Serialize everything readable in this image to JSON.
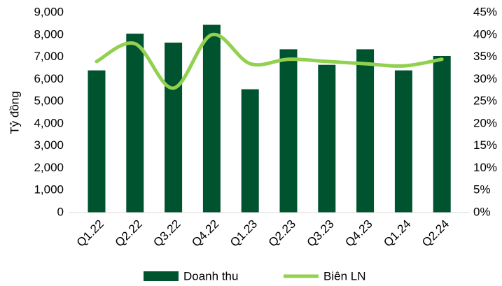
{
  "chart_data": {
    "type": "bar",
    "ylabel": "Tỷ đồng",
    "categories": [
      "Q1.22",
      "Q2.22",
      "Q3.22",
      "Q4.22",
      "Q1.23",
      "Q2.23",
      "Q3.23",
      "Q4.23",
      "Q1.24",
      "Q2.24"
    ],
    "series": [
      {
        "name": "Doanh thu",
        "type": "bar",
        "color": "#00532f",
        "values": [
          6400,
          8050,
          7650,
          8450,
          5550,
          7350,
          6650,
          7350,
          6400,
          7050
        ]
      },
      {
        "name": "Biên LN",
        "type": "line",
        "axis": "y2",
        "color": "#92d050",
        "values": [
          34,
          38,
          28,
          40,
          33.5,
          34.5,
          34,
          33.5,
          33,
          34.5
        ]
      }
    ],
    "ylim": [
      0,
      9000
    ],
    "yticks": [
      0,
      {
        "value": 1000,
        "label": "1,000"
      },
      {
        "value": 2000,
        "label": "2,000"
      },
      {
        "value": 3000,
        "label": "3,000"
      },
      {
        "value": 4000,
        "label": "4,000"
      },
      {
        "value": 5000,
        "label": "5,000"
      },
      {
        "value": 6000,
        "label": "6,000"
      },
      {
        "value": 7000,
        "label": "7,000"
      },
      {
        "value": 8000,
        "label": "8,000"
      },
      {
        "value": 9000,
        "label": "9,000"
      }
    ],
    "y2lim": [
      0,
      45
    ],
    "y2ticks": [
      {
        "value": 0,
        "label": "0%"
      },
      {
        "value": 5,
        "label": "5%"
      },
      {
        "value": 10,
        "label": "10%"
      },
      {
        "value": 15,
        "label": "15%"
      },
      {
        "value": 20,
        "label": "20%"
      },
      {
        "value": 25,
        "label": "25%"
      },
      {
        "value": 30,
        "label": "30%"
      },
      {
        "value": 35,
        "label": "35%"
      },
      {
        "value": 40,
        "label": "40%"
      },
      {
        "value": 45,
        "label": "45%"
      }
    ],
    "grid": false,
    "legend": "bottom"
  }
}
